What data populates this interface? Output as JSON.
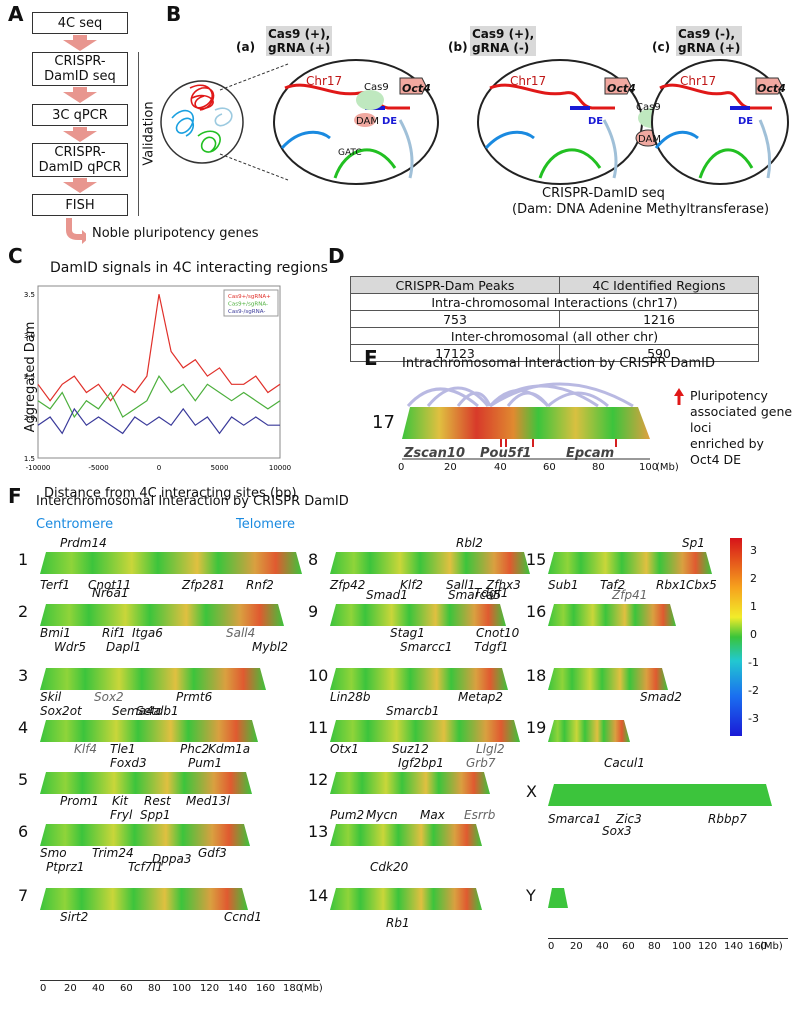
{
  "panels": {
    "A": "A",
    "B": "B",
    "C": "C",
    "D": "D",
    "E": "E",
    "F": "F"
  },
  "panelA": {
    "steps": [
      "4C seq",
      "CRISPR-\nDamID seq",
      "3C qPCR",
      "CRISPR-\nDamID qPCR",
      "FISH"
    ],
    "validation_label": "Validation",
    "result": "Noble pluripotency genes"
  },
  "panelB": {
    "conditions": [
      {
        "tag": "(a)",
        "label": "Cas9 (+),\ngRNA (+)"
      },
      {
        "tag": "(b)",
        "label": "Cas9 (+),\ngRNA (-)"
      },
      {
        "tag": "(c)",
        "label": "Cas9 (-),\ngRNA (+)"
      }
    ],
    "chr_label": "Chr17",
    "gene": "Oct4",
    "cas9": "Cas9",
    "dam": "DAM",
    "de": "DE",
    "me": "me",
    "gatc": "GATC",
    "caption1": "CRISPR-DamID seq",
    "caption2": "(Dam: DNA Adenine Methyltransferase)"
  },
  "chart_data": {
    "type": "line",
    "title": "DamID signals in 4C interacting regions",
    "xlabel": "Distance from 4C interacting sites (bp)",
    "ylabel": "Aggregated Dam Signals",
    "xlim": [
      -10000,
      10000
    ],
    "ylim": [
      1.5,
      3.6
    ],
    "xticks": [
      "-10000",
      "-5000",
      "0",
      "5000",
      "10000"
    ],
    "yticks": [
      "1.5",
      "2.0",
      "2.5",
      "3.0",
      "3.5"
    ],
    "x": [
      -10000,
      -9000,
      -8000,
      -7000,
      -6000,
      -5000,
      -4000,
      -3000,
      -2000,
      -1000,
      0,
      1000,
      2000,
      3000,
      4000,
      5000,
      6000,
      7000,
      8000,
      9000,
      10000
    ],
    "series": [
      {
        "name": "Cas9+/sgRNA+",
        "color": "#e0302a",
        "values": [
          2.4,
          2.2,
          2.4,
          2.5,
          2.3,
          2.4,
          2.2,
          2.4,
          2.3,
          2.5,
          3.5,
          2.8,
          2.6,
          2.7,
          2.5,
          2.6,
          2.4,
          2.4,
          2.5,
          2.3,
          2.4
        ]
      },
      {
        "name": "Cas9+/sgRNA-",
        "color": "#4caf3c",
        "values": [
          2.2,
          2.1,
          2.3,
          2.0,
          2.2,
          2.1,
          2.3,
          2.0,
          2.1,
          2.2,
          2.5,
          2.3,
          2.4,
          2.2,
          2.4,
          2.3,
          2.2,
          2.3,
          2.2,
          2.1,
          2.2
        ]
      },
      {
        "name": "Cas9-/sgRNA-",
        "color": "#3a3a9a",
        "values": [
          1.9,
          2.0,
          1.8,
          2.1,
          1.9,
          2.0,
          1.9,
          1.8,
          2.0,
          1.9,
          2.0,
          1.9,
          2.1,
          1.9,
          2.0,
          1.8,
          2.0,
          1.9,
          2.0,
          1.9,
          1.9
        ]
      }
    ]
  },
  "panelD": {
    "headers": [
      "CRISPR-Dam Peaks",
      "4C Identified Regions"
    ],
    "section1": "Intra-chromosomal Interactions  (chr17)",
    "row1": [
      "753",
      "1216"
    ],
    "section2": "Inter-chromosomal (all other chr)",
    "row2": [
      "17123",
      "590"
    ]
  },
  "panelE": {
    "title": "Intrachromosomal Interaction by CRISPR DamID",
    "chr": "17",
    "genes": [
      "Zscan10",
      "Pou5f1",
      "Epcam"
    ],
    "legend": "Pluripotency\nassociated gene loci\nenriched by Oct4 DE",
    "axis_ticks": [
      "0",
      "10",
      "20",
      "30",
      "40",
      "50",
      "60",
      "70",
      "80",
      "90",
      "100"
    ],
    "axis_unit": "(Mb)"
  },
  "panelF": {
    "title": "Interchromosomal Interaction by CRISPR DamID",
    "centromere": "Centromere",
    "telomere": "Telomere",
    "colorbar_ticks": [
      "3",
      "2",
      "1",
      "0",
      "-1",
      "-2",
      "-3"
    ],
    "axis_ticks": [
      "0",
      "20",
      "40",
      "60",
      "80",
      "100",
      "120",
      "140",
      "160",
      "180"
    ],
    "axis_unit": "(Mb)",
    "axisY_ticks": [
      "0",
      "20",
      "40",
      "60",
      "80",
      "100",
      "120",
      "140",
      "160"
    ],
    "chromosomes": [
      {
        "id": "1",
        "genes_above": [
          "Prdm14"
        ],
        "genes_below": [
          "Terf1",
          "Cnot11",
          "Zfp281",
          "Rnf2"
        ]
      },
      {
        "id": "2",
        "genes_above": [
          "Nr6a1"
        ],
        "genes_below": [
          "Bmi1",
          "Wdr5",
          "Rif1",
          "Dapl1",
          "Itga6",
          "Sall4",
          "Mybl2"
        ]
      },
      {
        "id": "3",
        "genes_below": [
          "Skil",
          "Sox2ot",
          "Sox2",
          "Sema4a",
          "Setdb1",
          "Prmt6"
        ]
      },
      {
        "id": "4",
        "genes_below": [
          "Klf4",
          "Tle1",
          "Foxd3",
          "Phc2",
          "Kdm1a",
          "Pum1"
        ]
      },
      {
        "id": "5",
        "genes_below": [
          "Prom1",
          "Kit",
          "Fryl",
          "Rest",
          "Spp1",
          "Med13l"
        ]
      },
      {
        "id": "6",
        "genes_below": [
          "Smo",
          "Ptprz1",
          "Trim24",
          "Tcf7l1",
          "Dppa3",
          "Gdf3"
        ]
      },
      {
        "id": "7",
        "genes_below": [
          "Sirt2",
          "Ccnd1"
        ]
      },
      {
        "id": "8",
        "genes_above": [
          "Rbl2"
        ],
        "genes_below": [
          "Zfp42",
          "Smad1",
          "Klf2",
          "Sall1",
          "Smarca5",
          "Zfhx3"
        ]
      },
      {
        "id": "9",
        "genes_above": [
          "Tdgf1"
        ],
        "genes_below": [
          "Stag1",
          "Smarcc1",
          "Cnot10",
          "Tdgf1"
        ]
      },
      {
        "id": "10",
        "genes_below": [
          "Lin28b",
          "Smarcb1",
          "Metap2"
        ]
      },
      {
        "id": "11",
        "genes_below": [
          "Otx1",
          "Suz12",
          "Igf2bp1",
          "Grb7",
          "Llgl2"
        ]
      },
      {
        "id": "12",
        "genes_below": [
          "Pum2",
          "Mycn",
          "Max",
          "Esrrb"
        ]
      },
      {
        "id": "13",
        "genes_below": [
          "Cdk20"
        ]
      },
      {
        "id": "14",
        "genes_below": [
          "Rb1"
        ]
      },
      {
        "id": "15",
        "genes_above": [
          "Sp1"
        ],
        "genes_below": [
          "Sub1",
          "Taf2",
          "Zfp41",
          "Rbx1",
          "Cbx5"
        ]
      },
      {
        "id": "16",
        "genes_below": []
      },
      {
        "id": "18",
        "genes_below": [
          "Smad2"
        ]
      },
      {
        "id": "19",
        "genes_below": [
          "Cacul1"
        ]
      },
      {
        "id": "X",
        "genes_below": [
          "Smarca1",
          "Sox3",
          "Zic3",
          "Rbbp7"
        ]
      },
      {
        "id": "Y",
        "genes_below": []
      }
    ]
  }
}
